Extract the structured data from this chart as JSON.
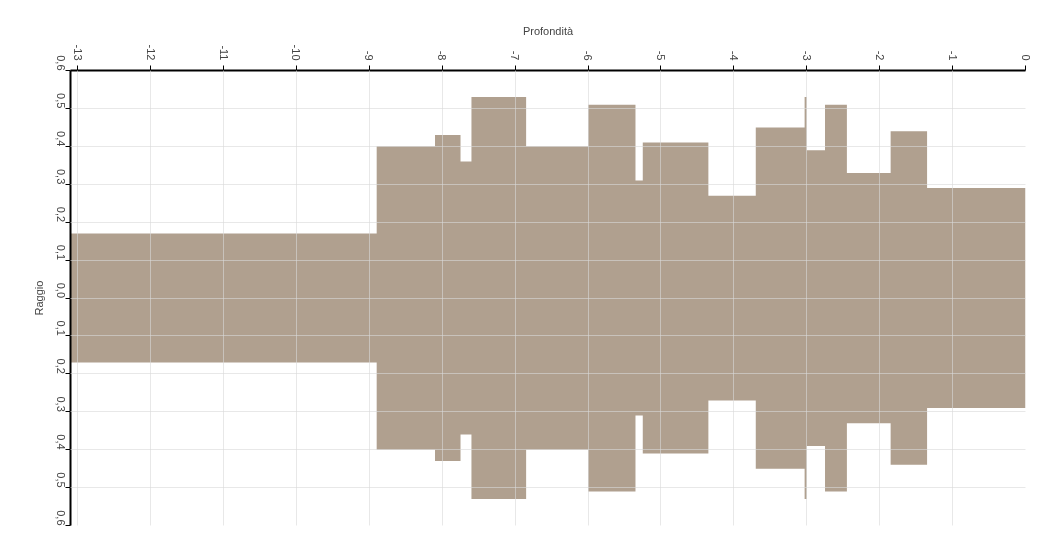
{
  "chart_data": {
    "type": "area",
    "xlabel": "Profondità",
    "ylabel": "Raggio",
    "x": [
      -13.1,
      -8.9,
      -8.1,
      -7.75,
      -7.6,
      -6.85,
      -6.0,
      -5.35,
      -5.25,
      -4.35,
      -3.7,
      -3.03,
      -3.0,
      -2.75,
      -2.45,
      -1.85,
      -1.35,
      0
    ],
    "series": [
      {
        "color": "#b0a08f",
        "values": [
          0.17,
          0.4,
          0.43,
          0.36,
          0.53,
          0.4,
          0.51,
          0.31,
          0.41,
          0.27,
          0.45,
          0.53,
          0.39,
          0.51,
          0.33,
          0.44,
          0.29,
          0.29
        ]
      },
      {
        "color": "#b0a08f",
        "values": [
          -0.17,
          -0.4,
          -0.43,
          -0.36,
          -0.53,
          -0.4,
          -0.51,
          -0.31,
          -0.41,
          -0.27,
          -0.45,
          -0.53,
          -0.39,
          -0.51,
          -0.33,
          -0.44,
          -0.29,
          -0.29
        ]
      }
    ],
    "xlim": [
      -13.1,
      0
    ],
    "xticks": [
      -13,
      -12,
      -11,
      -10,
      -9,
      -8,
      -7,
      -6,
      -5,
      -4,
      -3,
      -2,
      -1,
      0
    ],
    "ylim": [
      0.6,
      -0.6
    ],
    "yticks": [
      {
        "value": 0.6,
        "label": "0,6"
      },
      {
        "value": 0.5,
        "label": "0,5"
      },
      {
        "value": 0.4,
        "label": "0,4"
      },
      {
        "value": 0.3,
        "label": "0,3"
      },
      {
        "value": 0.2,
        "label": "0,2"
      },
      {
        "value": 0.1,
        "label": "0,1"
      },
      {
        "value": 0.0,
        "label": "0,0"
      },
      {
        "value": -0.1,
        "label": "0,1"
      },
      {
        "value": -0.2,
        "label": "0,2"
      },
      {
        "value": -0.3,
        "label": "0,3"
      },
      {
        "value": -0.4,
        "label": "0,4"
      },
      {
        "value": -0.5,
        "label": "0,5"
      },
      {
        "value": -0.6,
        "label": "0,6"
      }
    ],
    "grid": true
  }
}
